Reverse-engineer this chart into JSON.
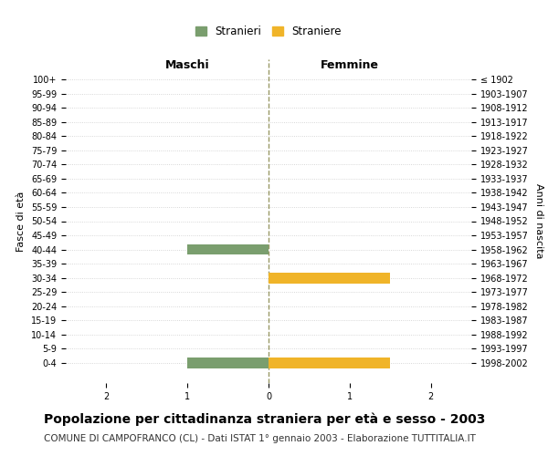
{
  "age_groups": [
    "100+",
    "95-99",
    "90-94",
    "85-89",
    "80-84",
    "75-79",
    "70-74",
    "65-69",
    "60-64",
    "55-59",
    "50-54",
    "45-49",
    "40-44",
    "35-39",
    "30-34",
    "25-29",
    "20-24",
    "15-19",
    "10-14",
    "5-9",
    "0-4"
  ],
  "birth_years": [
    "≤ 1902",
    "1903-1907",
    "1908-1912",
    "1913-1917",
    "1918-1922",
    "1923-1927",
    "1928-1932",
    "1933-1937",
    "1938-1942",
    "1943-1947",
    "1948-1952",
    "1953-1957",
    "1958-1962",
    "1963-1967",
    "1968-1972",
    "1973-1977",
    "1978-1982",
    "1983-1987",
    "1988-1992",
    "1993-1997",
    "1998-2002"
  ],
  "males": [
    0,
    0,
    0,
    0,
    0,
    0,
    0,
    0,
    0,
    0,
    0,
    0,
    1,
    0,
    0,
    0,
    0,
    0,
    0,
    0,
    1
  ],
  "females": [
    0,
    0,
    0,
    0,
    0,
    0,
    0,
    0,
    0,
    0,
    0,
    0,
    0,
    0,
    1.5,
    0,
    0,
    0,
    0,
    0,
    1.5
  ],
  "male_color": "#7a9e6e",
  "female_color": "#f0b429",
  "background_color": "#ffffff",
  "grid_color": "#cccccc",
  "center_line_color": "#999966",
  "xlim": [
    -2.5,
    2.5
  ],
  "xticks": [
    -2,
    -1,
    0,
    1,
    2
  ],
  "xticklabels": [
    "2",
    "1",
    "0",
    "1",
    "2"
  ],
  "title": "Popolazione per cittadinanza straniera per età e sesso - 2003",
  "subtitle": "COMUNE DI CAMPOFRANCO (CL) - Dati ISTAT 1° gennaio 2003 - Elaborazione TUTTITALIA.IT",
  "ylabel_left": "Fasce di età",
  "ylabel_right": "Anni di nascita",
  "label_maschi": "Maschi",
  "label_femmine": "Femmine",
  "legend_stranieri": "Stranieri",
  "legend_straniere": "Straniere",
  "bar_height": 0.75,
  "title_fontsize": 10,
  "subtitle_fontsize": 7.5,
  "tick_fontsize": 7,
  "header_fontsize": 9,
  "legend_fontsize": 8.5,
  "ylabel_fontsize": 8
}
